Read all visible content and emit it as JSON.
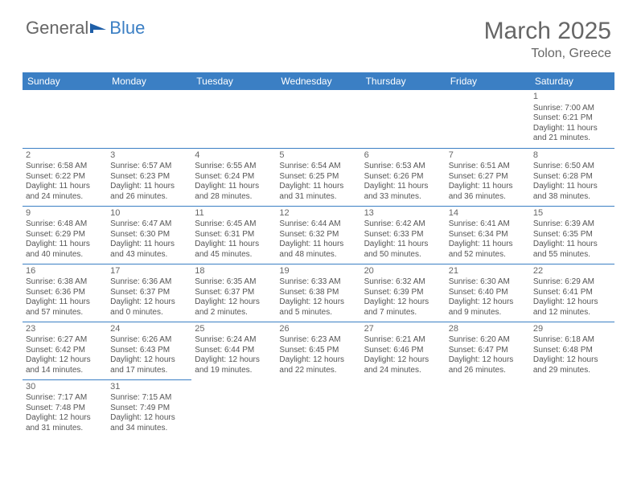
{
  "brand": {
    "part1": "General",
    "part2": "Blue"
  },
  "title": "March 2025",
  "location": "Tolon, Greece",
  "colors": {
    "header_bg": "#3b7fc4",
    "header_text": "#ffffff",
    "border": "#3b7fc4",
    "text": "#555555",
    "title_text": "#666666"
  },
  "weekdays": [
    "Sunday",
    "Monday",
    "Tuesday",
    "Wednesday",
    "Thursday",
    "Friday",
    "Saturday"
  ],
  "weeks": [
    [
      null,
      null,
      null,
      null,
      null,
      null,
      {
        "n": "1",
        "sr": "Sunrise: 7:00 AM",
        "ss": "Sunset: 6:21 PM",
        "dl": "Daylight: 11 hours and 21 minutes."
      }
    ],
    [
      {
        "n": "2",
        "sr": "Sunrise: 6:58 AM",
        "ss": "Sunset: 6:22 PM",
        "dl": "Daylight: 11 hours and 24 minutes."
      },
      {
        "n": "3",
        "sr": "Sunrise: 6:57 AM",
        "ss": "Sunset: 6:23 PM",
        "dl": "Daylight: 11 hours and 26 minutes."
      },
      {
        "n": "4",
        "sr": "Sunrise: 6:55 AM",
        "ss": "Sunset: 6:24 PM",
        "dl": "Daylight: 11 hours and 28 minutes."
      },
      {
        "n": "5",
        "sr": "Sunrise: 6:54 AM",
        "ss": "Sunset: 6:25 PM",
        "dl": "Daylight: 11 hours and 31 minutes."
      },
      {
        "n": "6",
        "sr": "Sunrise: 6:53 AM",
        "ss": "Sunset: 6:26 PM",
        "dl": "Daylight: 11 hours and 33 minutes."
      },
      {
        "n": "7",
        "sr": "Sunrise: 6:51 AM",
        "ss": "Sunset: 6:27 PM",
        "dl": "Daylight: 11 hours and 36 minutes."
      },
      {
        "n": "8",
        "sr": "Sunrise: 6:50 AM",
        "ss": "Sunset: 6:28 PM",
        "dl": "Daylight: 11 hours and 38 minutes."
      }
    ],
    [
      {
        "n": "9",
        "sr": "Sunrise: 6:48 AM",
        "ss": "Sunset: 6:29 PM",
        "dl": "Daylight: 11 hours and 40 minutes."
      },
      {
        "n": "10",
        "sr": "Sunrise: 6:47 AM",
        "ss": "Sunset: 6:30 PM",
        "dl": "Daylight: 11 hours and 43 minutes."
      },
      {
        "n": "11",
        "sr": "Sunrise: 6:45 AM",
        "ss": "Sunset: 6:31 PM",
        "dl": "Daylight: 11 hours and 45 minutes."
      },
      {
        "n": "12",
        "sr": "Sunrise: 6:44 AM",
        "ss": "Sunset: 6:32 PM",
        "dl": "Daylight: 11 hours and 48 minutes."
      },
      {
        "n": "13",
        "sr": "Sunrise: 6:42 AM",
        "ss": "Sunset: 6:33 PM",
        "dl": "Daylight: 11 hours and 50 minutes."
      },
      {
        "n": "14",
        "sr": "Sunrise: 6:41 AM",
        "ss": "Sunset: 6:34 PM",
        "dl": "Daylight: 11 hours and 52 minutes."
      },
      {
        "n": "15",
        "sr": "Sunrise: 6:39 AM",
        "ss": "Sunset: 6:35 PM",
        "dl": "Daylight: 11 hours and 55 minutes."
      }
    ],
    [
      {
        "n": "16",
        "sr": "Sunrise: 6:38 AM",
        "ss": "Sunset: 6:36 PM",
        "dl": "Daylight: 11 hours and 57 minutes."
      },
      {
        "n": "17",
        "sr": "Sunrise: 6:36 AM",
        "ss": "Sunset: 6:37 PM",
        "dl": "Daylight: 12 hours and 0 minutes."
      },
      {
        "n": "18",
        "sr": "Sunrise: 6:35 AM",
        "ss": "Sunset: 6:37 PM",
        "dl": "Daylight: 12 hours and 2 minutes."
      },
      {
        "n": "19",
        "sr": "Sunrise: 6:33 AM",
        "ss": "Sunset: 6:38 PM",
        "dl": "Daylight: 12 hours and 5 minutes."
      },
      {
        "n": "20",
        "sr": "Sunrise: 6:32 AM",
        "ss": "Sunset: 6:39 PM",
        "dl": "Daylight: 12 hours and 7 minutes."
      },
      {
        "n": "21",
        "sr": "Sunrise: 6:30 AM",
        "ss": "Sunset: 6:40 PM",
        "dl": "Daylight: 12 hours and 9 minutes."
      },
      {
        "n": "22",
        "sr": "Sunrise: 6:29 AM",
        "ss": "Sunset: 6:41 PM",
        "dl": "Daylight: 12 hours and 12 minutes."
      }
    ],
    [
      {
        "n": "23",
        "sr": "Sunrise: 6:27 AM",
        "ss": "Sunset: 6:42 PM",
        "dl": "Daylight: 12 hours and 14 minutes."
      },
      {
        "n": "24",
        "sr": "Sunrise: 6:26 AM",
        "ss": "Sunset: 6:43 PM",
        "dl": "Daylight: 12 hours and 17 minutes."
      },
      {
        "n": "25",
        "sr": "Sunrise: 6:24 AM",
        "ss": "Sunset: 6:44 PM",
        "dl": "Daylight: 12 hours and 19 minutes."
      },
      {
        "n": "26",
        "sr": "Sunrise: 6:23 AM",
        "ss": "Sunset: 6:45 PM",
        "dl": "Daylight: 12 hours and 22 minutes."
      },
      {
        "n": "27",
        "sr": "Sunrise: 6:21 AM",
        "ss": "Sunset: 6:46 PM",
        "dl": "Daylight: 12 hours and 24 minutes."
      },
      {
        "n": "28",
        "sr": "Sunrise: 6:20 AM",
        "ss": "Sunset: 6:47 PM",
        "dl": "Daylight: 12 hours and 26 minutes."
      },
      {
        "n": "29",
        "sr": "Sunrise: 6:18 AM",
        "ss": "Sunset: 6:48 PM",
        "dl": "Daylight: 12 hours and 29 minutes."
      }
    ],
    [
      {
        "n": "30",
        "sr": "Sunrise: 7:17 AM",
        "ss": "Sunset: 7:48 PM",
        "dl": "Daylight: 12 hours and 31 minutes."
      },
      {
        "n": "31",
        "sr": "Sunrise: 7:15 AM",
        "ss": "Sunset: 7:49 PM",
        "dl": "Daylight: 12 hours and 34 minutes."
      },
      null,
      null,
      null,
      null,
      null
    ]
  ]
}
